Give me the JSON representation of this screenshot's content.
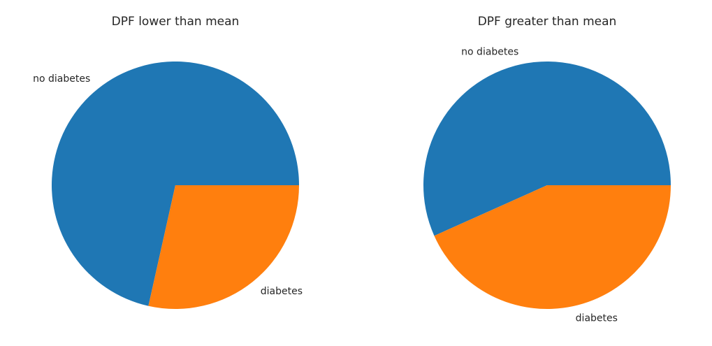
{
  "colors": {
    "no_diabetes": "#1f77b4",
    "diabetes": "#ff7f0e",
    "background": "#ffffff"
  },
  "chart_data": [
    {
      "type": "pie",
      "title": "DPF lower than mean",
      "categories": [
        "no diabetes",
        "diabetes"
      ],
      "values": [
        71.5,
        28.5
      ],
      "colors": [
        "#1f77b4",
        "#ff7f0e"
      ],
      "start_angle_deg": 0,
      "direction": "counterclockwise"
    },
    {
      "type": "pie",
      "title": "DPF greater than mean",
      "categories": [
        "no diabetes",
        "diabetes"
      ],
      "values": [
        56.7,
        43.3
      ],
      "colors": [
        "#1f77b4",
        "#ff7f0e"
      ],
      "start_angle_deg": 0,
      "direction": "counterclockwise"
    }
  ]
}
